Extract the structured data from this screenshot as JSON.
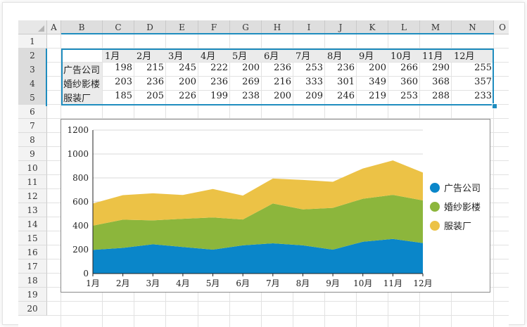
{
  "columns": [
    "A",
    "B",
    "C",
    "D",
    "E",
    "F",
    "G",
    "H",
    "I",
    "J",
    "K",
    "L",
    "M",
    "N",
    "O"
  ],
  "rows": [
    "1",
    "2",
    "3",
    "4",
    "5",
    "6",
    "7",
    "8",
    "9",
    "10",
    "11",
    "12",
    "13",
    "14",
    "15",
    "16",
    "17",
    "18",
    "19",
    "20"
  ],
  "table": {
    "months": [
      "1月",
      "2月",
      "3月",
      "4月",
      "5月",
      "6月",
      "7月",
      "8月",
      "9月",
      "10月",
      "11月",
      "12月"
    ],
    "series": [
      {
        "name": "广告公司",
        "values": [
          198,
          215,
          245,
          222,
          200,
          236,
          253,
          236,
          200,
          266,
          290,
          255
        ]
      },
      {
        "name": "婚纱影楼",
        "values": [
          203,
          236,
          200,
          236,
          269,
          216,
          333,
          301,
          349,
          360,
          368,
          357
        ]
      },
      {
        "name": "服装厂",
        "values": [
          185,
          205,
          226,
          199,
          238,
          200,
          209,
          246,
          219,
          253,
          288,
          233
        ]
      }
    ]
  },
  "chart_data": {
    "type": "area",
    "stacked": true,
    "categories": [
      "1月",
      "2月",
      "3月",
      "4月",
      "5月",
      "6月",
      "7月",
      "8月",
      "9月",
      "10月",
      "11月",
      "12月"
    ],
    "series": [
      {
        "name": "广告公司",
        "values": [
          198,
          215,
          245,
          222,
          200,
          236,
          253,
          236,
          200,
          266,
          290,
          255
        ],
        "color": "#0a86c9"
      },
      {
        "name": "婚纱影楼",
        "values": [
          203,
          236,
          200,
          236,
          269,
          216,
          333,
          301,
          349,
          360,
          368,
          357
        ],
        "color": "#8cb63c"
      },
      {
        "name": "服装厂",
        "values": [
          185,
          205,
          226,
          199,
          238,
          200,
          209,
          246,
          219,
          253,
          288,
          233
        ],
        "color": "#ecc246"
      }
    ],
    "ylim": [
      0,
      1200
    ],
    "yticks": [
      "0",
      "200",
      "400",
      "600",
      "800",
      "1000",
      "1200"
    ],
    "grid": true,
    "legend": "right",
    "title": "",
    "xlabel": "",
    "ylabel": ""
  },
  "colors": {
    "selection": "#1f8dbf",
    "header_bg": "#ececec"
  }
}
